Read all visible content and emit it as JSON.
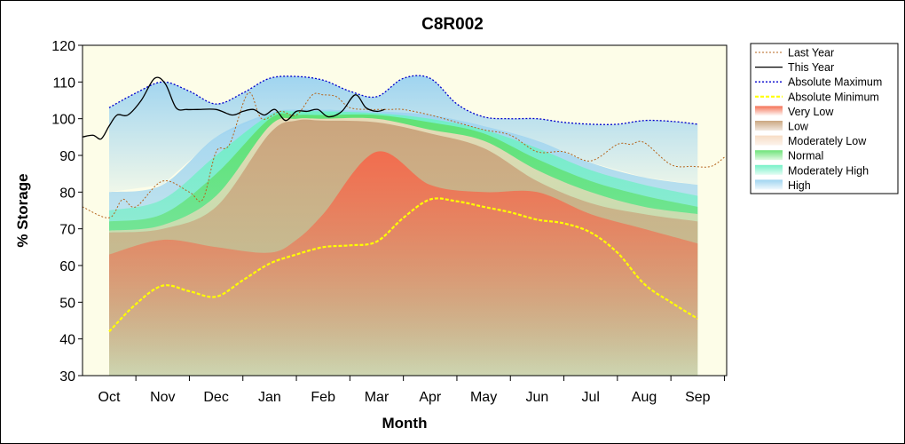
{
  "chart_data": {
    "type": "area",
    "title": "C8R002",
    "xlabel": "Month",
    "ylabel": "% Storage",
    "ylim": [
      30,
      120
    ],
    "yticks": [
      30,
      40,
      50,
      60,
      70,
      80,
      90,
      100,
      110,
      120
    ],
    "categories": [
      "Oct",
      "Nov",
      "Dec",
      "Jan",
      "Feb",
      "Mar",
      "Apr",
      "May",
      "Jun",
      "Jul",
      "Aug",
      "Sep"
    ],
    "grid": false,
    "legend_position": "right",
    "colors": {
      "plot_background": "#fdfde8",
      "very_low": "#f46a4c",
      "low": "#c9a27a",
      "moderately_low": "#f6d9bf",
      "normal": "#5fe06a",
      "moderately_high": "#6ff0c4",
      "high": "#9fd4f0",
      "last_year": "#b5651d",
      "this_year": "#000000",
      "absolute_maximum": "#0000cc",
      "absolute_minimum": "#ffff00"
    },
    "bands": {
      "x": [
        0,
        1,
        2,
        3,
        3.5,
        4,
        5,
        6,
        7,
        8,
        9,
        10,
        11
      ],
      "very_low_top": [
        63,
        67,
        65,
        63.5,
        67,
        74,
        91,
        82,
        80,
        80,
        74,
        70,
        66
      ],
      "low_top": [
        69,
        70,
        76,
        96,
        99.5,
        99.5,
        99,
        96,
        92,
        83,
        77,
        74,
        72
      ],
      "moderately_low_top": [
        69.5,
        71,
        79,
        98,
        100,
        100,
        100,
        97,
        94,
        86,
        80,
        76,
        74
      ],
      "normal_top": [
        72,
        74,
        85,
        100,
        101,
        101,
        101,
        99,
        96,
        89,
        83,
        79,
        76
      ],
      "moderately_high_top": [
        75,
        78,
        90,
        101,
        102,
        102,
        101.5,
        100,
        97,
        92,
        86,
        82,
        79
      ],
      "high_top": [
        80,
        82,
        95,
        101.5,
        102.5,
        102.5,
        102,
        101,
        98,
        94,
        88,
        84,
        82
      ]
    },
    "series": [
      {
        "name": "Last Year",
        "x": [
          -0.5,
          0,
          0.25,
          0.5,
          1,
          1.5,
          1.75,
          2,
          2.25,
          2.6,
          2.85,
          3.2,
          3.5,
          3.8,
          4,
          4.25,
          4.5,
          4.9,
          5,
          5.25,
          5.5,
          6,
          6.5,
          7,
          7.5,
          8,
          8.5,
          9,
          9.5,
          9.75,
          10,
          10.5,
          10.9,
          11.25,
          11.5
        ],
        "values": [
          76,
          73,
          78,
          76,
          83,
          80,
          78,
          91,
          93,
          107,
          100,
          102,
          101,
          106.5,
          106.5,
          106,
          103,
          102.5,
          102.5,
          102.5,
          102.5,
          101,
          99,
          97,
          95.5,
          91,
          91,
          88.5,
          93,
          93,
          93.5,
          87.5,
          87,
          87,
          89.5
        ]
      },
      {
        "name": "This Year",
        "x": [
          -0.5,
          -0.3,
          -0.15,
          0,
          0.15,
          0.35,
          0.6,
          0.85,
          1.05,
          1.25,
          1.45,
          1.65,
          2,
          2.3,
          2.5,
          2.7,
          2.9,
          3.1,
          3.3,
          3.5,
          3.7,
          3.9,
          4.1,
          4.35,
          4.6,
          4.8,
          5,
          5.15
        ],
        "values": [
          95,
          95.5,
          94.5,
          98,
          101,
          101,
          105,
          111,
          109.5,
          103,
          102.5,
          102.5,
          102.5,
          101,
          102,
          102.5,
          101,
          102.5,
          99.5,
          102,
          102,
          102.5,
          100.5,
          102,
          106.5,
          103,
          102,
          102.5
        ]
      },
      {
        "name": "Absolute Maximum",
        "x": [
          0,
          0.5,
          1,
          1.5,
          2,
          2.5,
          3,
          3.5,
          4,
          4.5,
          5,
          5.5,
          6,
          6.5,
          7,
          7.5,
          8,
          8.5,
          9,
          9.5,
          10,
          10.5,
          11
        ],
        "values": [
          103,
          107,
          110,
          107.5,
          104,
          107,
          111,
          111.5,
          110.5,
          107.5,
          106,
          111,
          111,
          104,
          100.5,
          100,
          100,
          99,
          98.5,
          98.5,
          99.5,
          99.3,
          98.5
        ]
      },
      {
        "name": "Absolute Minimum",
        "x": [
          0,
          0.5,
          1,
          1.5,
          2,
          2.5,
          3,
          3.5,
          4,
          4.5,
          5,
          5.5,
          6,
          6.5,
          7,
          7.5,
          8,
          8.5,
          9,
          9.5,
          10,
          10.5,
          11
        ],
        "values": [
          42,
          49.5,
          54.5,
          53,
          51.5,
          56,
          60.5,
          63,
          65,
          65.5,
          66.5,
          73,
          78,
          77.5,
          76,
          74.5,
          72.5,
          71.5,
          69,
          63.5,
          55,
          50,
          45.5
        ]
      }
    ],
    "legend": [
      "Last Year",
      "This Year",
      "Absolute Maximum",
      "Absolute Minimum",
      "Very Low",
      "Low",
      "Moderately Low",
      "Normal",
      "Moderately High",
      "High"
    ]
  }
}
